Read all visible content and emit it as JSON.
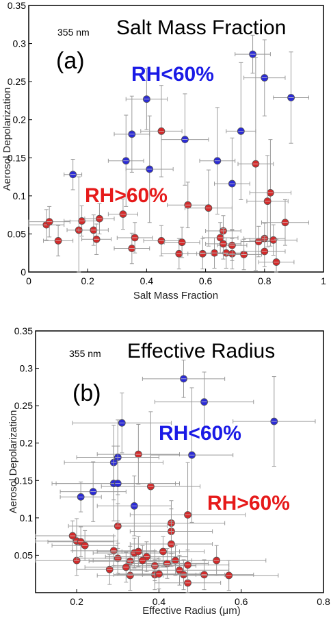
{
  "colors": {
    "blue": "#2b2bd6",
    "red": "#d42a2a",
    "err": "#9a9a9a",
    "rh_blue": "#1a1ae6",
    "rh_red": "#e61a1a"
  },
  "chart_data": [
    {
      "type": "scatter",
      "panel_label": "(a)",
      "wavelength": "355 nm",
      "title": "Salt Mass Fraction",
      "xlabel": "Salt Mass Fraction",
      "ylabel": "Aerosol Depolarization",
      "xlim": [
        0,
        1
      ],
      "ylim": [
        0,
        0.35
      ],
      "xticks": [
        "0",
        "0.2",
        "0.4",
        "0.6",
        "0.8",
        "1"
      ],
      "yticks": [
        "0",
        "0.05",
        "0.1",
        "0.15",
        "0.2",
        "0.25",
        "0.3",
        "0.35"
      ],
      "xtick_values": [
        0,
        0.2,
        0.4,
        0.6,
        0.8,
        1
      ],
      "ytick_values": [
        0,
        0.05,
        0.1,
        0.15,
        0.2,
        0.25,
        0.3,
        0.35
      ],
      "annotations": {
        "blue": "RH<60%",
        "red": "RH>60%"
      },
      "series": [
        {
          "name": "RH<60%",
          "color": "blue",
          "points": [
            [
              0.76,
              0.286,
              0.06,
              0.025
            ],
            [
              0.4,
              0.227,
              0.07,
              0.04
            ],
            [
              0.8,
              0.255,
              0.07,
              0.05
            ],
            [
              0.89,
              0.229,
              0.06,
              0.06
            ],
            [
              0.35,
              0.181,
              0.06,
              0.05
            ],
            [
              0.53,
              0.174,
              0.08,
              0.06
            ],
            [
              0.72,
              0.185,
              0.05,
              0.09
            ],
            [
              0.33,
              0.146,
              0.06,
              0.06
            ],
            [
              0.41,
              0.135,
              0.08,
              0.07
            ],
            [
              0.64,
              0.146,
              0.06,
              0.07
            ],
            [
              0.69,
              0.116,
              0.06,
              0.06
            ],
            [
              0.15,
              0.128,
              0.03,
              0.02
            ]
          ]
        },
        {
          "name": "RH>60%",
          "color": "red",
          "points": [
            [
              0.45,
              0.185,
              0.07,
              0.06
            ],
            [
              0.77,
              0.142,
              0.06,
              0.14
            ],
            [
              0.82,
              0.104,
              0.07,
              0.07
            ],
            [
              0.81,
              0.093,
              0.07,
              0.06
            ],
            [
              0.54,
              0.088,
              0.07,
              0.03
            ],
            [
              0.61,
              0.084,
              0.08,
              0.05
            ],
            [
              0.32,
              0.076,
              0.05,
              0.02
            ],
            [
              0.87,
              0.065,
              0.08,
              0.03
            ],
            [
              0.06,
              0.062,
              0.06,
              0.02
            ],
            [
              0.07,
              0.066,
              0.07,
              0.02
            ],
            [
              0.18,
              0.067,
              0.06,
              0.02
            ],
            [
              0.24,
              0.07,
              0.05,
              0.02
            ],
            [
              0.1,
              0.041,
              0.05,
              0.02
            ],
            [
              0.17,
              0.055,
              0.04,
              0.07
            ],
            [
              0.22,
              0.055,
              0.05,
              0.02
            ],
            [
              0.23,
              0.043,
              0.05,
              0.02
            ],
            [
              0.35,
              0.031,
              0.06,
              0.02
            ],
            [
              0.36,
              0.045,
              0.06,
              0.02
            ],
            [
              0.45,
              0.041,
              0.06,
              0.02
            ],
            [
              0.51,
              0.024,
              0.06,
              0.02
            ],
            [
              0.52,
              0.039,
              0.06,
              0.02
            ],
            [
              0.59,
              0.024,
              0.05,
              0.02
            ],
            [
              0.63,
              0.025,
              0.05,
              0.02
            ],
            [
              0.65,
              0.045,
              0.06,
              0.02
            ],
            [
              0.66,
              0.054,
              0.06,
              0.02
            ],
            [
              0.67,
              0.025,
              0.05,
              0.02
            ],
            [
              0.69,
              0.024,
              0.05,
              0.02
            ],
            [
              0.69,
              0.035,
              0.05,
              0.02
            ],
            [
              0.73,
              0.023,
              0.06,
              0.02
            ],
            [
              0.78,
              0.04,
              0.06,
              0.02
            ],
            [
              0.8,
              0.044,
              0.07,
              0.02
            ],
            [
              0.8,
              0.027,
              0.07,
              0.02
            ],
            [
              0.83,
              0.042,
              0.08,
              0.02
            ],
            [
              0.84,
              0.013,
              0.06,
              0.03
            ],
            [
              0.66,
              0.037,
              0.06,
              0.02
            ]
          ]
        }
      ]
    },
    {
      "type": "scatter",
      "panel_label": "(b)",
      "wavelength": "355 nm",
      "title": "Effective Radius",
      "xlabel": "Effective Radius (μm)",
      "ylabel": "Aerosol Depolarization",
      "xlim": [
        0.1,
        0.8
      ],
      "ylim": [
        0,
        0.35
      ],
      "xticks": [
        "0.2",
        "0.4",
        "0.6",
        "0.8"
      ],
      "yticks": [
        "0.05",
        "0.1",
        "0.15",
        "0.2",
        "0.25",
        "0.3",
        "0.35"
      ],
      "xtick_values": [
        0.2,
        0.4,
        0.6,
        0.8
      ],
      "ytick_values": [
        0.05,
        0.1,
        0.15,
        0.2,
        0.25,
        0.3,
        0.35
      ],
      "annotations": {
        "blue": "RH<60%",
        "red": "RH>60%"
      },
      "series": [
        {
          "name": "RH<60%",
          "color": "blue",
          "points": [
            [
              0.46,
              0.286,
              0.1,
              0.025
            ],
            [
              0.51,
              0.255,
              0.12,
              0.04
            ],
            [
              0.31,
              0.227,
              0.12,
              0.04
            ],
            [
              0.68,
              0.229,
              0.1,
              0.06
            ],
            [
              0.48,
              0.184,
              0.1,
              0.09
            ],
            [
              0.3,
              0.181,
              0.1,
              0.05
            ],
            [
              0.29,
              0.174,
              0.12,
              0.05
            ],
            [
              0.29,
              0.146,
              0.15,
              0.05
            ],
            [
              0.3,
              0.146,
              0.15,
              0.05
            ],
            [
              0.24,
              0.135,
              0.08,
              0.04
            ],
            [
              0.21,
              0.128,
              0.05,
              0.02
            ],
            [
              0.34,
              0.116,
              0.09,
              0.04
            ]
          ]
        },
        {
          "name": "RH>60%",
          "color": "red",
          "points": [
            [
              0.35,
              0.185,
              0.1,
              0.04
            ],
            [
              0.38,
              0.142,
              0.12,
              0.1
            ],
            [
              0.3,
              0.089,
              0.12,
              0.03
            ],
            [
              0.19,
              0.076,
              0.1,
              0.02
            ],
            [
              0.2,
              0.069,
              0.1,
              0.03
            ],
            [
              0.21,
              0.068,
              0.08,
              0.02
            ],
            [
              0.22,
              0.063,
              0.08,
              0.02
            ],
            [
              0.43,
              0.093,
              0.13,
              0.03
            ],
            [
              0.47,
              0.104,
              0.14,
              0.07
            ],
            [
              0.43,
              0.082,
              0.1,
              0.03
            ],
            [
              0.43,
              0.065,
              0.1,
              0.03
            ],
            [
              0.29,
              0.056,
              0.1,
              0.02
            ],
            [
              0.34,
              0.053,
              0.1,
              0.02
            ],
            [
              0.35,
              0.055,
              0.1,
              0.02
            ],
            [
              0.41,
              0.055,
              0.1,
              0.02
            ],
            [
              0.2,
              0.043,
              0.1,
              0.02
            ],
            [
              0.3,
              0.046,
              0.1,
              0.02
            ],
            [
              0.33,
              0.042,
              0.1,
              0.02
            ],
            [
              0.37,
              0.048,
              0.1,
              0.02
            ],
            [
              0.44,
              0.043,
              0.1,
              0.02
            ],
            [
              0.54,
              0.043,
              0.12,
              0.02
            ],
            [
              0.28,
              0.031,
              0.08,
              0.02
            ],
            [
              0.33,
              0.023,
              0.08,
              0.02
            ],
            [
              0.39,
              0.024,
              0.1,
              0.02
            ],
            [
              0.42,
              0.039,
              0.1,
              0.02
            ],
            [
              0.45,
              0.03,
              0.12,
              0.02
            ],
            [
              0.46,
              0.024,
              0.1,
              0.02
            ],
            [
              0.47,
              0.013,
              0.08,
              0.02
            ],
            [
              0.51,
              0.024,
              0.12,
              0.02
            ],
            [
              0.57,
              0.023,
              0.12,
              0.02
            ],
            [
              0.4,
              0.025,
              0.1,
              0.02
            ],
            [
              0.39,
              0.036,
              0.1,
              0.02
            ],
            [
              0.32,
              0.034,
              0.1,
              0.02
            ],
            [
              0.36,
              0.043,
              0.12,
              0.02
            ],
            [
              0.47,
              0.037,
              0.1,
              0.02
            ]
          ]
        }
      ]
    }
  ]
}
